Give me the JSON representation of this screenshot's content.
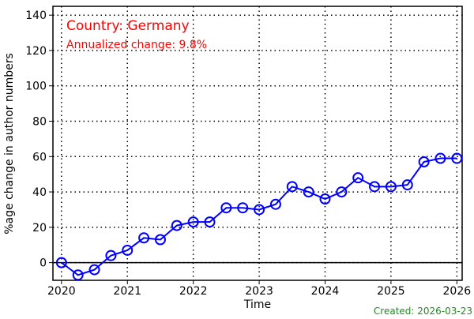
{
  "chart_data": {
    "type": "line",
    "annotations": [
      "Country: Germany",
      "Annualized change: 9.8%"
    ],
    "annotation_color": "#ff0000",
    "xlabel": "Time",
    "ylabel": "%age change in author numbers",
    "footer": "Created: 2026-03-23",
    "footer_color": "#228b22",
    "x": [
      2020,
      2020.25,
      2020.5,
      2020.75,
      2021,
      2021.25,
      2021.5,
      2021.75,
      2022,
      2022.25,
      2022.5,
      2022.75,
      2023,
      2023.25,
      2023.5,
      2023.75,
      2024,
      2024.25,
      2024.5,
      2024.75,
      2025,
      2025.25,
      2025.5,
      2025.75,
      2026
    ],
    "series": [
      {
        "name": "Germany",
        "color": "#0000ff",
        "values": [
          0,
          -7,
          -4,
          4,
          7,
          14,
          13,
          21,
          23,
          23,
          31,
          31,
          30,
          33,
          43,
          40,
          36,
          40,
          48,
          43,
          43,
          44,
          57,
          59,
          59
        ]
      }
    ],
    "xlim": [
      2019.87,
      2026.08
    ],
    "xticks": [
      2020,
      2021,
      2022,
      2023,
      2024,
      2025,
      2026
    ],
    "ylim": [
      -10,
      145
    ],
    "yticks": [
      0,
      20,
      40,
      60,
      80,
      100,
      120,
      140
    ],
    "reference_line": 0,
    "grid": true
  }
}
